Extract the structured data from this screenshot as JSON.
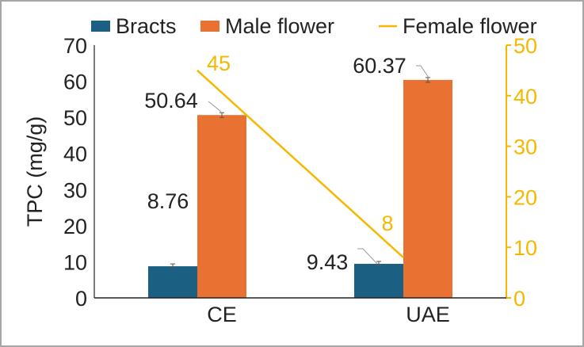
{
  "chart_data": {
    "type": "bar",
    "categories": [
      "CE",
      "UAE"
    ],
    "series": [
      {
        "name": "Bracts",
        "type": "bar",
        "axis": "left",
        "color": "#1b5f82",
        "values": [
          8.76,
          9.43
        ],
        "labels": [
          "8.76",
          "9.43"
        ]
      },
      {
        "name": "Male flower",
        "type": "bar",
        "axis": "left",
        "color": "#e97132",
        "values": [
          50.64,
          60.37
        ],
        "labels": [
          "50.64",
          "60.37"
        ]
      },
      {
        "name": "Female flower",
        "type": "line",
        "axis": "right",
        "color": "#f5b800",
        "values": [
          45,
          8
        ],
        "labels": [
          "45",
          "8"
        ]
      }
    ],
    "ylabel": "TPC (mg/g)",
    "ylim": [
      0,
      70
    ],
    "yticks": [
      "0",
      "10",
      "20",
      "30",
      "40",
      "50",
      "60",
      "70"
    ],
    "y2lim": [
      0,
      50
    ],
    "y2ticks": [
      "0",
      "10",
      "20",
      "30",
      "40",
      "50"
    ],
    "legend_position": "top",
    "grid": false
  }
}
